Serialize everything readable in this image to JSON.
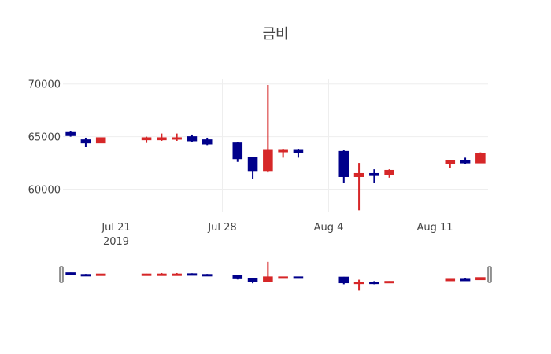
{
  "chart_data": {
    "type": "candlestick",
    "title": "금비",
    "xlabel": "",
    "ylabel": "",
    "x_ticks": [
      {
        "label": "Jul 21",
        "sublabel": "2019",
        "date": "2019-07-21"
      },
      {
        "label": "Jul 28",
        "sublabel": "",
        "date": "2019-07-28"
      },
      {
        "label": "Aug 4",
        "sublabel": "",
        "date": "2019-08-04"
      },
      {
        "label": "Aug 11",
        "sublabel": "",
        "date": "2019-08-11"
      }
    ],
    "y_ticks": [
      60000,
      65000,
      70000
    ],
    "ylim": [
      57800,
      70500
    ],
    "xlim": [
      "2019-07-17T12:00",
      "2019-08-14T12:00"
    ],
    "increasing_color": "#d62728",
    "decreasing_color": "#00008b",
    "grid": true,
    "rangeslider": true,
    "candles": [
      {
        "date": "2019-07-18",
        "open": 65400,
        "high": 65500,
        "low": 65000,
        "close": 65100
      },
      {
        "date": "2019-07-19",
        "open": 64700,
        "high": 64900,
        "low": 64000,
        "close": 64400
      },
      {
        "date": "2019-07-20",
        "open": 64400,
        "high": 64900,
        "low": 64400,
        "close": 64900
      },
      {
        "date": "2019-07-23",
        "open": 64700,
        "high": 65000,
        "low": 64400,
        "close": 64900
      },
      {
        "date": "2019-07-24",
        "open": 64700,
        "high": 65300,
        "low": 64600,
        "close": 64900
      },
      {
        "date": "2019-07-25",
        "open": 64800,
        "high": 65300,
        "low": 64600,
        "close": 64900
      },
      {
        "date": "2019-07-26",
        "open": 65000,
        "high": 65200,
        "low": 64500,
        "close": 64600
      },
      {
        "date": "2019-07-27",
        "open": 64700,
        "high": 64900,
        "low": 64200,
        "close": 64300
      },
      {
        "date": "2019-07-29",
        "open": 64400,
        "high": 64500,
        "low": 62600,
        "close": 62900
      },
      {
        "date": "2019-07-30",
        "open": 63000,
        "high": 63100,
        "low": 61000,
        "close": 61700
      },
      {
        "date": "2019-07-31",
        "open": 61700,
        "high": 69900,
        "low": 61600,
        "close": 63700
      },
      {
        "date": "2019-08-01",
        "open": 63600,
        "high": 63800,
        "low": 63000,
        "close": 63700
      },
      {
        "date": "2019-08-02",
        "open": 63700,
        "high": 63800,
        "low": 63000,
        "close": 63500
      },
      {
        "date": "2019-08-05",
        "open": 63600,
        "high": 63700,
        "low": 60600,
        "close": 61200
      },
      {
        "date": "2019-08-06",
        "open": 61200,
        "high": 62500,
        "low": 58000,
        "close": 61500
      },
      {
        "date": "2019-08-07",
        "open": 61500,
        "high": 61900,
        "low": 60600,
        "close": 61300
      },
      {
        "date": "2019-08-08",
        "open": 61400,
        "high": 61900,
        "low": 61100,
        "close": 61800
      },
      {
        "date": "2019-08-12",
        "open": 62400,
        "high": 62700,
        "low": 62000,
        "close": 62700
      },
      {
        "date": "2019-08-13",
        "open": 62700,
        "high": 63000,
        "low": 62400,
        "close": 62500
      },
      {
        "date": "2019-08-14",
        "open": 62500,
        "high": 63500,
        "low": 62500,
        "close": 63400
      }
    ]
  }
}
